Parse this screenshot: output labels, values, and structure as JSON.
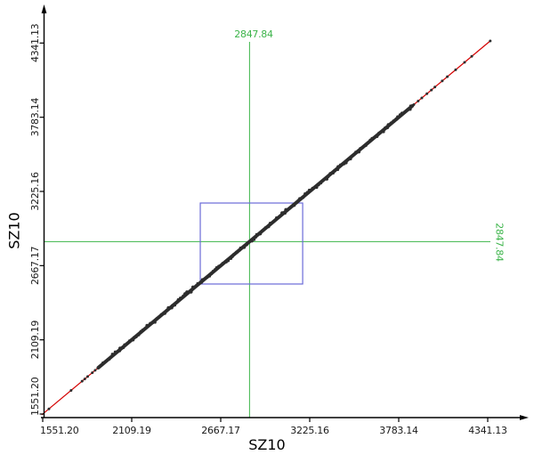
{
  "figure": {
    "x_title": "SZ10",
    "y_title": "SZ10"
  },
  "chart_data": {
    "type": "scatter",
    "title": "",
    "xlabel": "SZ10",
    "ylabel": "SZ10",
    "x_ticks": [
      1551.2,
      2109.19,
      2667.17,
      3225.16,
      3783.14,
      4341.13
    ],
    "y_ticks": [
      1551.2,
      2109.19,
      2667.17,
      3225.16,
      3783.14,
      4341.13
    ],
    "x_tick_labels": [
      "1551.20",
      "2109.19",
      "2667.17",
      "3225.16",
      "3783.14",
      "4341.13"
    ],
    "y_tick_labels": [
      "1551.20",
      "2109.19",
      "2667.17",
      "3225.16",
      "3783.14",
      "4341.13"
    ],
    "axis_min": 1551.2,
    "axis_max": 4341.13,
    "grid": "off",
    "legend": "none",
    "relationship": "points lie on the identity line y = x",
    "crosshair": {
      "x": 2847.84,
      "y": 2847.84,
      "x_label": "2847.84",
      "y_label": "2847.84"
    },
    "fit_line": {
      "x1": 1545,
      "y1": 1545,
      "x2": 4360,
      "y2": 4360
    },
    "selection_rect": {
      "x1": 2539,
      "y1": 2529,
      "x2": 3181,
      "y2": 3138
    },
    "dense_band": {
      "from": 1900,
      "to": 3868
    },
    "sparse_points": [
      1590,
      1729,
      1798,
      1815,
      1833,
      1862,
      1880,
      1897,
      3878,
      3905,
      3928,
      3960,
      3988,
      4010,
      4056,
      4088,
      4140,
      4196,
      4241,
      4357
    ],
    "colors": {
      "points": "#2d2d2d",
      "crosshair": "#3cb44a",
      "fit": "#d40000",
      "selection": "#6a6ad8",
      "axis": "#000000",
      "tick_text": "#1a1a1a"
    }
  }
}
